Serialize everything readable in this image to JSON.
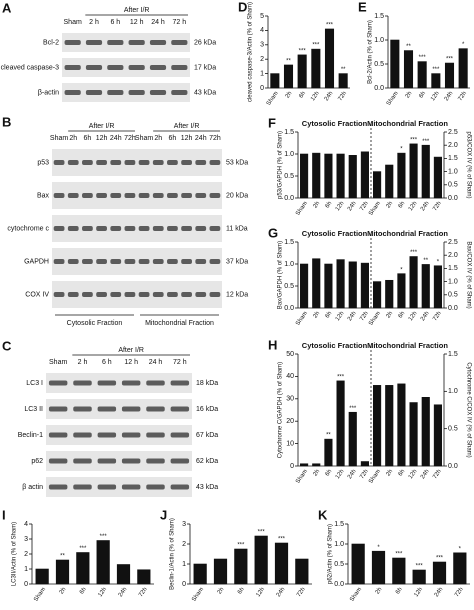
{
  "blots": [
    {
      "label": "A",
      "header": "After I/R",
      "lanes": [
        "Sham",
        "2 h",
        "6 h",
        "12 h",
        "24 h",
        "72 h"
      ],
      "rows": [
        {
          "name": "Bcl-2",
          "size": "26 kDa"
        },
        {
          "name": "cleaved caspase-3",
          "size": "17 kDa"
        },
        {
          "name": "β-actin",
          "size": "43 kDa"
        }
      ]
    },
    {
      "label": "B",
      "groups": [
        {
          "header": "After I/R",
          "lanes": [
            "Sham",
            "2h",
            "6h",
            "12h",
            "24h",
            "72h"
          ],
          "name": "Cytosolic Fraction"
        },
        {
          "header": "After I/R",
          "lanes": [
            "Sham",
            "2h",
            "6h",
            "12h",
            "24h",
            "72h"
          ],
          "name": "Mitochondrial Fraction"
        }
      ],
      "rows": [
        {
          "name": "p53",
          "size": "53 kDa"
        },
        {
          "name": "Bax",
          "size": "20 kDa"
        },
        {
          "name": "cytochrome c",
          "size": "11 kDa"
        },
        {
          "name": "GAPDH",
          "size": "37 kDa"
        },
        {
          "name": "COX IV",
          "size": "12 kDa"
        }
      ]
    },
    {
      "label": "C",
      "header": "After I/R",
      "lanes": [
        "Sham",
        "2 h",
        "6 h",
        "12 h",
        "24 h",
        "72 h"
      ],
      "rows": [
        {
          "name": "LC3 I",
          "size": "18 kDa"
        },
        {
          "name": "LC3 II",
          "size": "16 kDa"
        },
        {
          "name": "Beclin-1",
          "size": "67 kDa"
        },
        {
          "name": "p62",
          "size": "62 kDa"
        },
        {
          "name": "β actin",
          "size": "43 kDa"
        }
      ]
    }
  ],
  "chart_data": [
    {
      "type": "bar",
      "label": "D",
      "ylabel": "cleaved caspase-3/Actin (% of Sham)",
      "categories": [
        "Sham",
        "2h",
        "6h",
        "12h",
        "24h",
        "72h"
      ],
      "series": [
        {
          "color": "#111111",
          "values": [
            1,
            1.6,
            2.3,
            2.7,
            4.1,
            1.0
          ],
          "annotations": [
            null,
            "**",
            "***",
            "***",
            "***",
            "**"
          ]
        }
      ],
      "ylim": [
        0,
        5
      ],
      "yticks": [
        0,
        1,
        2,
        3,
        4,
        5
      ]
    },
    {
      "type": "bar",
      "label": "E",
      "ylabel": "Bcl-2/Actin (% of Sham)",
      "categories": [
        "Sham",
        "2h",
        "6h",
        "12h",
        "24h",
        "72h"
      ],
      "series": [
        {
          "color": "#111111",
          "values": [
            1,
            0.78,
            0.55,
            0.3,
            0.52,
            0.82
          ],
          "annotations": [
            null,
            "**",
            "***",
            "***",
            "***",
            "*"
          ]
        }
      ],
      "ylim": [
        0,
        1.5
      ],
      "yticks": [
        {
          "value": 0,
          "label": "0.0"
        },
        {
          "value": 0.5,
          "label": "0.5"
        },
        {
          "value": 1,
          "label": "1.0"
        },
        {
          "value": 1.5,
          "label": "1.5"
        }
      ]
    },
    {
      "type": "split_bar",
      "label": "F",
      "ylabel": "p53/GAPDH (% of Sham)",
      "y2label": "p53/COX IV (% of Sham)",
      "categories": [
        "Sham",
        "2h",
        "6h",
        "12h",
        "24h",
        "72h"
      ],
      "series": [
        {
          "name": "Cytosolic Fraction",
          "color": "#111111",
          "values": [
            1,
            1.02,
            1.0,
            1.0,
            0.97,
            1.05
          ]
        },
        {
          "name": "Mitochondrial Fraction",
          "color": "#111111",
          "axis": "y2",
          "values": [
            1,
            1.25,
            1.7,
            2.05,
            2.0,
            1.55
          ],
          "annotations": [
            null,
            null,
            "*",
            "***",
            "***",
            null
          ]
        }
      ],
      "ylim": [
        0,
        1.5
      ],
      "yticks": [
        {
          "value": 0,
          "label": "0.0"
        },
        {
          "value": 0.5,
          "label": "0.5"
        },
        {
          "value": 1,
          "label": "1.0"
        },
        {
          "value": 1.5,
          "label": "1.5"
        }
      ],
      "y2lim": [
        0,
        2.5
      ],
      "y2ticks": [
        {
          "value": 0,
          "label": "0.0"
        },
        {
          "value": 0.5,
          "label": "0.5"
        },
        {
          "value": 1,
          "label": "1.0"
        },
        {
          "value": 1.5,
          "label": "1.5"
        },
        {
          "value": 2,
          "label": "2.0"
        },
        {
          "value": 2.5,
          "label": "2.5"
        }
      ]
    },
    {
      "type": "split_bar",
      "label": "G",
      "ylabel": "Bax/GAPDH (% of Sham)",
      "y2label": "Bax/COX IV (% of Sham)",
      "categories": [
        "Sham",
        "2h",
        "6h",
        "12h",
        "24h",
        "72h"
      ],
      "series": [
        {
          "name": "Cytosolic Fraction",
          "color": "#111111",
          "values": [
            1,
            1.12,
            1.0,
            1.1,
            1.05,
            1.02
          ]
        },
        {
          "name": "Mitochondrial Fraction",
          "color": "#111111",
          "axis": "y2",
          "values": [
            1,
            1.05,
            1.3,
            1.95,
            1.65,
            1.6
          ],
          "annotations": [
            null,
            null,
            "*",
            "***",
            "**",
            "*"
          ]
        }
      ],
      "ylim": [
        0,
        1.5
      ],
      "yticks": [
        {
          "value": 0,
          "label": "0.0"
        },
        {
          "value": 0.5,
          "label": "0.5"
        },
        {
          "value": 1,
          "label": "1.0"
        },
        {
          "value": 1.5,
          "label": "1.5"
        }
      ],
      "y2lim": [
        0,
        2.5
      ],
      "y2ticks": [
        {
          "value": 0,
          "label": "0.0"
        },
        {
          "value": 0.5,
          "label": "0.5"
        },
        {
          "value": 1,
          "label": "1.0"
        },
        {
          "value": 1.5,
          "label": "1.5"
        },
        {
          "value": 2,
          "label": "2.0"
        },
        {
          "value": 2.5,
          "label": "2.5"
        }
      ]
    },
    {
      "type": "split_bar",
      "label": "H",
      "ylabel": "Cytochrome C/GAPDH (% of Sham)",
      "y2label": "Cytochrome C/COX IV (% of Sham)",
      "categories": [
        "Sham",
        "2h",
        "6h",
        "12h",
        "24h",
        "72h"
      ],
      "series": [
        {
          "name": "Cytosolic Fraction",
          "color": "#111111",
          "values": [
            1,
            1,
            12,
            38,
            24,
            2
          ],
          "annotations": [
            null,
            null,
            "**",
            "***",
            "***",
            null
          ]
        },
        {
          "name": "Mitochondrial Fraction",
          "color": "#111111",
          "axis": "y2",
          "values": [
            1.08,
            1.08,
            1.1,
            0.85,
            0.92,
            0.82
          ]
        }
      ],
      "ylim": [
        0,
        50
      ],
      "yticks": [
        0,
        10,
        20,
        30,
        40,
        50
      ],
      "y2lim": [
        0,
        1.5
      ],
      "y2ticks": [
        {
          "value": 0,
          "label": "0.0"
        },
        {
          "value": 0.5,
          "label": "0.5"
        },
        {
          "value": 1,
          "label": "1.0"
        },
        {
          "value": 1.5,
          "label": "1.5"
        }
      ]
    },
    {
      "type": "bar",
      "label": "I",
      "ylabel": "LC3II/Actin (% of Sham)",
      "categories": [
        "Sham",
        "2h",
        "6h",
        "12h",
        "24h",
        "72h"
      ],
      "series": [
        {
          "color": "#111111",
          "values": [
            1,
            1.6,
            2.1,
            2.9,
            1.3,
            0.95
          ],
          "annotations": [
            null,
            "**",
            "***",
            "***",
            null,
            null
          ]
        }
      ],
      "ylim": [
        0,
        4
      ],
      "yticks": [
        0,
        1,
        2,
        3,
        4
      ]
    },
    {
      "type": "bar",
      "label": "J",
      "ylabel": "Beclin-1/Actin (% of Sham)",
      "categories": [
        "Sham",
        "2h",
        "6h",
        "12h",
        "24h",
        "72h"
      ],
      "series": [
        {
          "color": "#111111",
          "values": [
            1,
            1.25,
            1.75,
            2.4,
            2.05,
            1.25
          ],
          "annotations": [
            null,
            null,
            "***",
            "***",
            "***",
            null
          ]
        }
      ],
      "ylim": [
        0,
        3
      ],
      "yticks": [
        0,
        1,
        2,
        3
      ]
    },
    {
      "type": "bar",
      "label": "K",
      "ylabel": "p62/Actin (% of Sham)",
      "categories": [
        "Sham",
        "2h",
        "6h",
        "12h",
        "24h",
        "72h"
      ],
      "series": [
        {
          "color": "#111111",
          "values": [
            1,
            0.82,
            0.65,
            0.35,
            0.55,
            0.78
          ],
          "annotations": [
            null,
            "*",
            "***",
            "***",
            "***",
            "*"
          ]
        }
      ],
      "ylim": [
        0,
        1.5
      ],
      "yticks": [
        {
          "value": 0,
          "label": "0.0"
        },
        {
          "value": 0.5,
          "label": "0.5"
        },
        {
          "value": 1,
          "label": "1.0"
        },
        {
          "value": 1.5,
          "label": "1.5"
        }
      ]
    }
  ]
}
